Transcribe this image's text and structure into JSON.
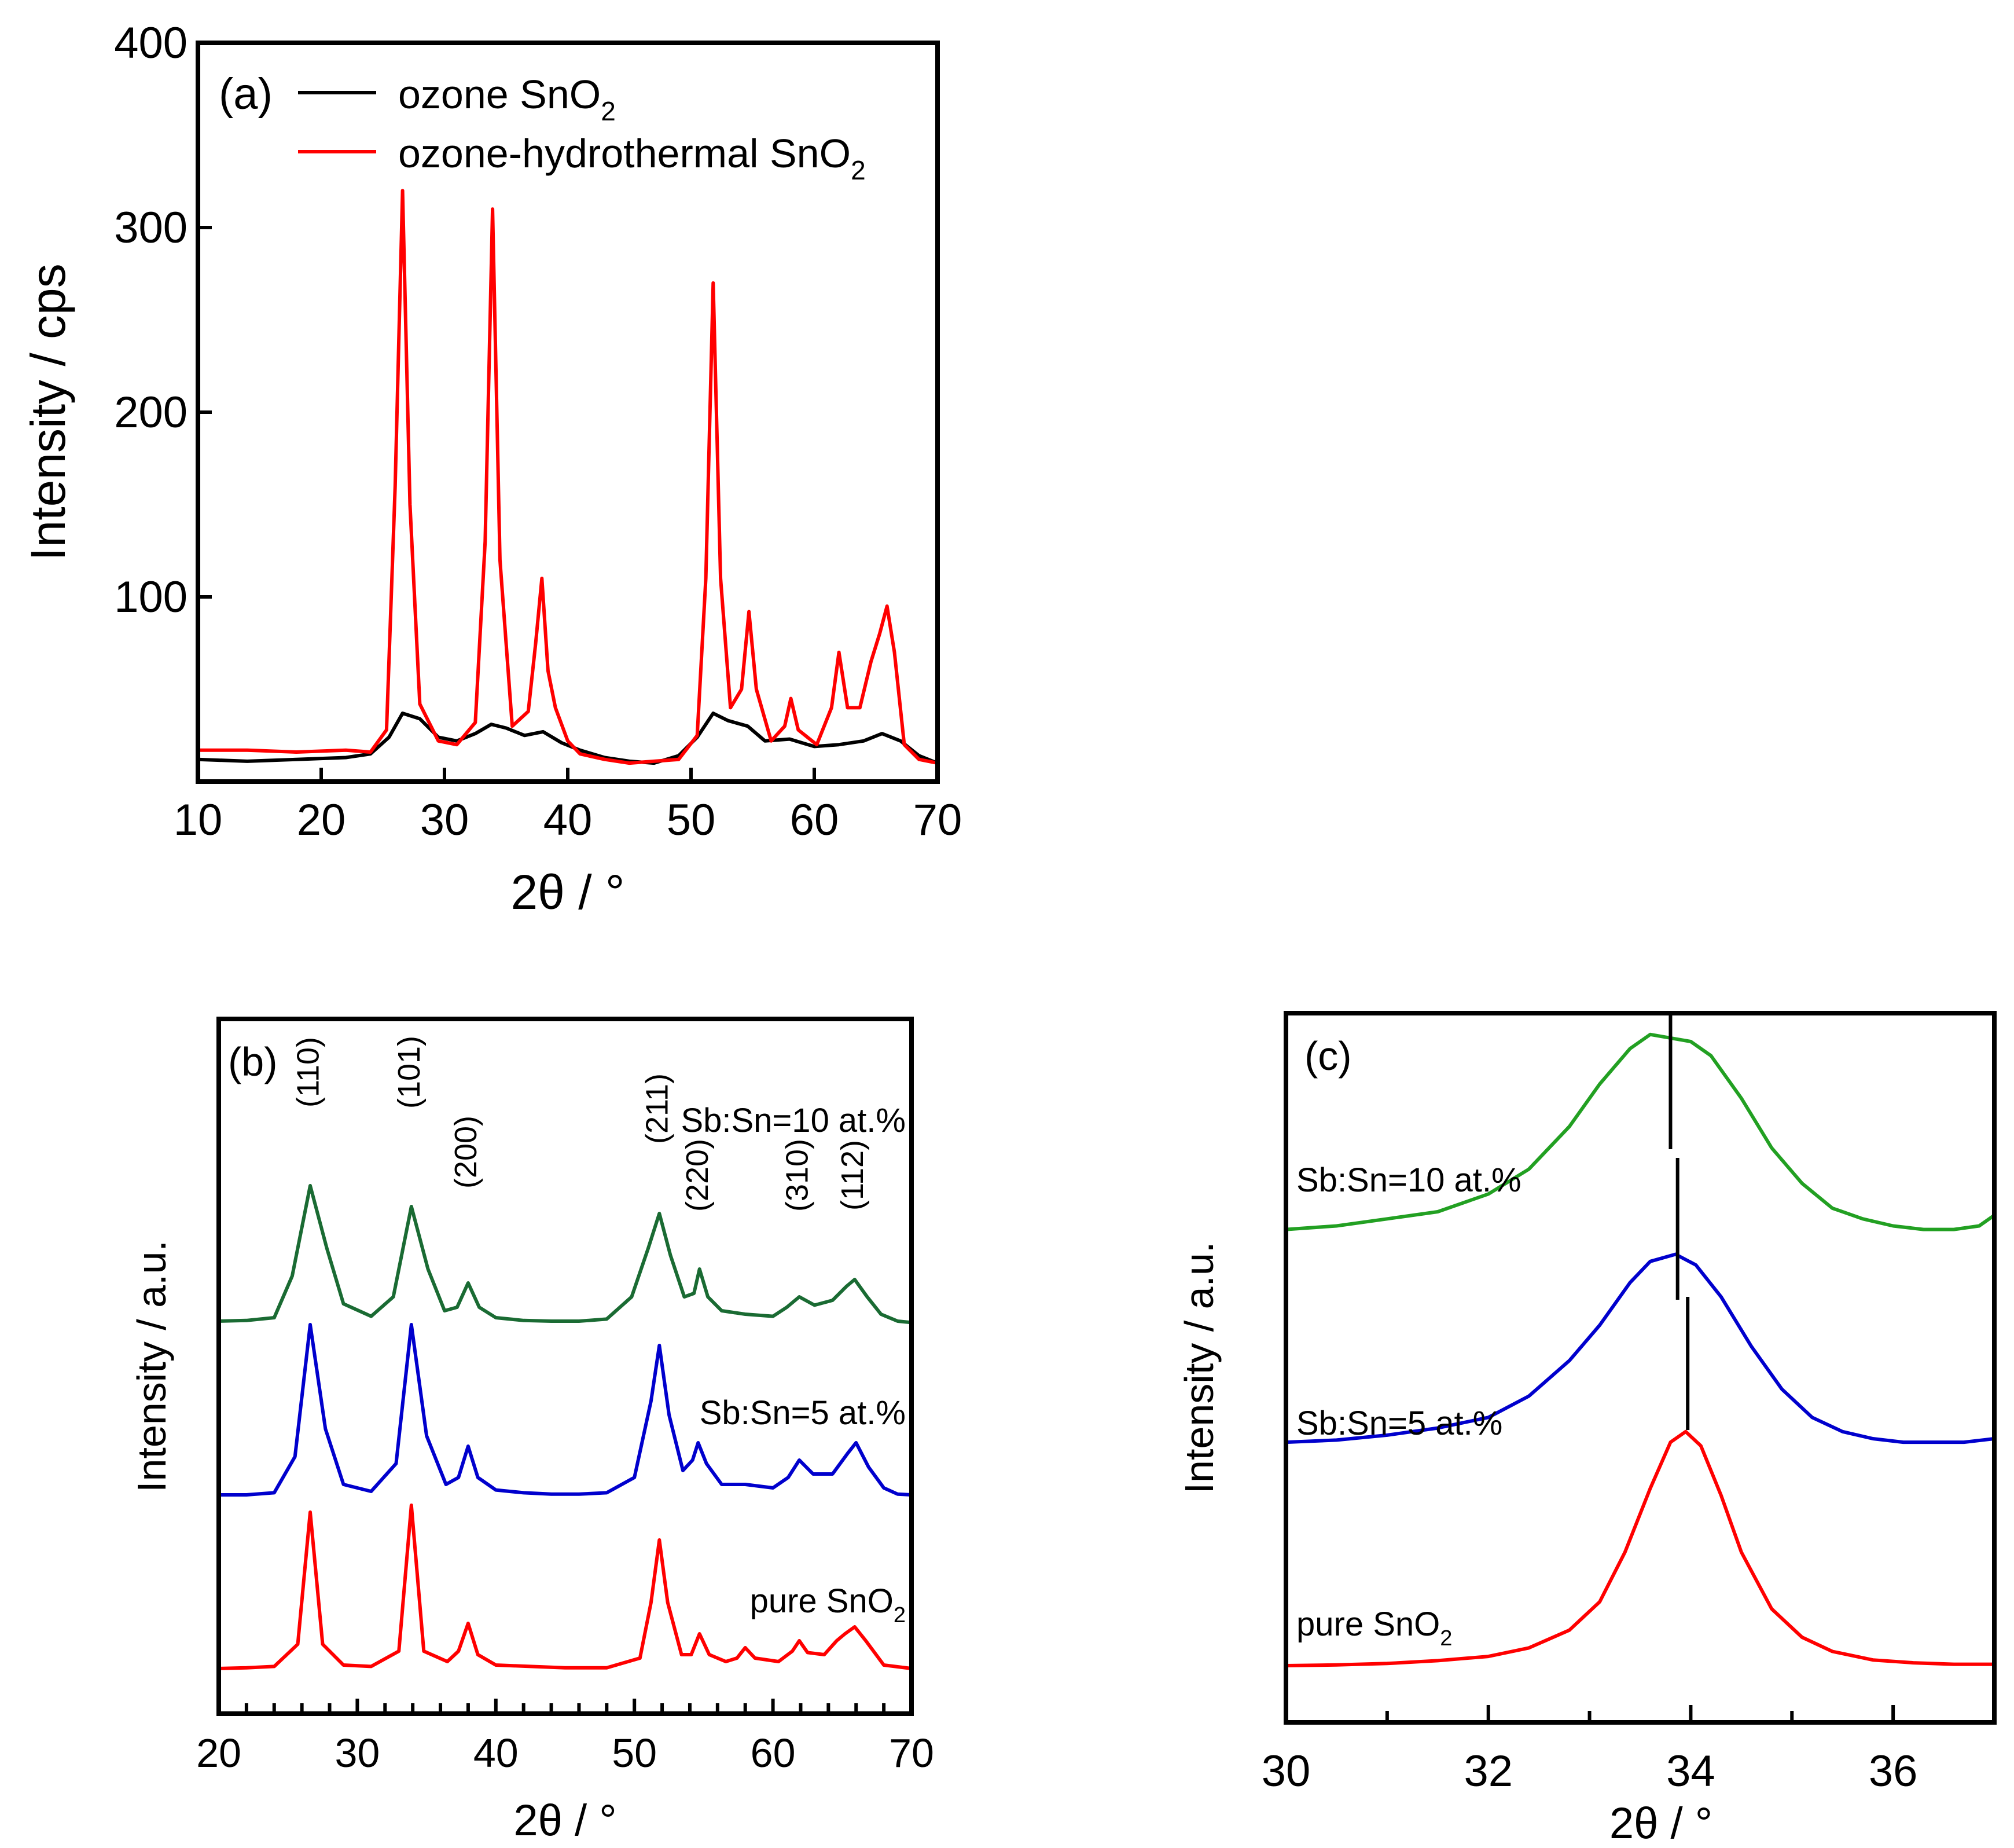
{
  "chart_data": [
    {
      "id": "a",
      "type": "line",
      "panel_label": "(a)",
      "xlabel": "2θ  / °",
      "ylabel": "Intensity / cps",
      "xlim": [
        10,
        70
      ],
      "ylim": [
        0,
        400
      ],
      "xticks": [
        10,
        20,
        30,
        40,
        50,
        60,
        70
      ],
      "yticks": [
        100,
        200,
        300,
        400
      ],
      "legend_position": "top-left",
      "series": [
        {
          "name": "ozone SnO2",
          "legend_label": "ozone SnO",
          "legend_sub": "2",
          "color": "#000000",
          "x": [
            10,
            14,
            18,
            22,
            24,
            25.5,
            26.6,
            28,
            29.5,
            31,
            32.5,
            33.8,
            35,
            36.5,
            38,
            39.5,
            41,
            43,
            45,
            47,
            49,
            50.5,
            51.8,
            53,
            54.6,
            56,
            58,
            60,
            62,
            64,
            65.5,
            67,
            68.5,
            70
          ],
          "values": [
            12,
            11,
            12,
            13,
            15,
            24,
            37,
            34,
            24,
            22,
            26,
            31,
            29,
            25,
            27,
            21,
            17,
            13,
            11,
            10,
            14,
            24,
            37,
            33,
            30,
            22,
            23,
            19,
            20,
            22,
            26,
            22,
            14,
            10
          ]
        },
        {
          "name": "ozone-hydrothermal SnO2",
          "legend_label": "ozone-hydrothermal SnO",
          "legend_sub": "2",
          "color": "#ff0000",
          "x": [
            10,
            14,
            18,
            22,
            24,
            25.3,
            26.0,
            26.6,
            27.2,
            28,
            29.5,
            31,
            32.5,
            33.3,
            33.9,
            34.5,
            35.5,
            36.8,
            37.4,
            37.9,
            38.4,
            39,
            40,
            41,
            43,
            45,
            47,
            49,
            50.5,
            51.2,
            51.8,
            52.4,
            53.2,
            54.1,
            54.7,
            55.3,
            56.5,
            57.6,
            58.1,
            58.7,
            60.2,
            61.4,
            62,
            62.7,
            63.7,
            64.6,
            65.3,
            65.9,
            66.5,
            67.3,
            68.5,
            70
          ],
          "values": [
            17,
            17,
            16,
            17,
            16,
            28,
            160,
            320,
            150,
            42,
            22,
            20,
            32,
            130,
            310,
            120,
            30,
            38,
            75,
            110,
            60,
            40,
            22,
            15,
            12,
            10,
            11,
            12,
            25,
            110,
            270,
            110,
            40,
            50,
            92,
            50,
            22,
            30,
            45,
            28,
            20,
            40,
            70,
            40,
            40,
            65,
            80,
            95,
            70,
            20,
            12,
            10
          ]
        }
      ]
    },
    {
      "id": "b",
      "type": "line",
      "panel_label": "(b)",
      "xlabel": "2θ  / °",
      "ylabel": "Intensity / a.u.",
      "xlim": [
        20,
        70
      ],
      "ylim": [
        0,
        1
      ],
      "xticks": [
        20,
        30,
        40,
        50,
        60,
        70
      ],
      "peak_labels": [
        {
          "label": "(110)",
          "x": 26.6
        },
        {
          "label": "(101)",
          "x": 33.9
        },
        {
          "label": "(200)",
          "x": 38.0
        },
        {
          "label": "(211)",
          "x": 51.8
        },
        {
          "label": "(220)",
          "x": 54.7
        },
        {
          "label": "(310)",
          "x": 61.9
        },
        {
          "label": "(112)",
          "x": 65.9
        }
      ],
      "series": [
        {
          "name": "Sb:Sn=10 at.%",
          "label": "Sb:Sn=10 at.%",
          "label_sub": "",
          "color": "#1a6b33",
          "x": [
            20,
            22,
            24,
            25.3,
            26.6,
            27.8,
            29,
            31,
            32.6,
            33.9,
            35.1,
            36.3,
            37.2,
            38,
            38.8,
            40,
            42,
            44,
            46,
            48,
            49.8,
            51,
            51.8,
            52.6,
            53.6,
            54.3,
            54.7,
            55.3,
            56.3,
            58,
            60,
            61,
            61.9,
            63,
            64.3,
            65.3,
            65.9,
            66.8,
            67.8,
            69,
            70
          ],
          "values": [
            0.565,
            0.566,
            0.57,
            0.63,
            0.76,
            0.67,
            0.59,
            0.572,
            0.6,
            0.73,
            0.64,
            0.58,
            0.585,
            0.62,
            0.585,
            0.57,
            0.566,
            0.565,
            0.565,
            0.568,
            0.6,
            0.67,
            0.72,
            0.66,
            0.6,
            0.605,
            0.64,
            0.6,
            0.58,
            0.575,
            0.572,
            0.585,
            0.6,
            0.588,
            0.595,
            0.615,
            0.625,
            0.6,
            0.575,
            0.565,
            0.563
          ]
        },
        {
          "name": "Sb:Sn=5 at.%",
          "label": "Sb:Sn=5 at.%",
          "label_sub": "",
          "color": "#0000cd",
          "x": [
            20,
            22,
            24,
            25.5,
            26.6,
            27.7,
            29,
            31,
            32.8,
            33.9,
            35,
            36.4,
            37.3,
            38,
            38.7,
            40,
            42,
            44,
            46,
            48,
            50,
            51.2,
            51.8,
            52.5,
            53.5,
            54.2,
            54.6,
            55.2,
            56.3,
            58,
            60,
            61.1,
            61.9,
            62.9,
            64.3,
            65.4,
            66,
            66.9,
            68,
            69,
            70
          ],
          "values": [
            0.315,
            0.315,
            0.318,
            0.37,
            0.56,
            0.41,
            0.33,
            0.32,
            0.36,
            0.56,
            0.4,
            0.33,
            0.34,
            0.385,
            0.34,
            0.322,
            0.318,
            0.316,
            0.316,
            0.318,
            0.34,
            0.45,
            0.53,
            0.43,
            0.35,
            0.365,
            0.39,
            0.36,
            0.33,
            0.33,
            0.325,
            0.34,
            0.365,
            0.345,
            0.345,
            0.375,
            0.39,
            0.355,
            0.325,
            0.316,
            0.315
          ]
        },
        {
          "name": "pure SnO2",
          "label": "pure SnO",
          "label_sub": "2",
          "color": "#ff0000",
          "x": [
            20,
            22,
            24,
            25.7,
            26.6,
            27.5,
            29,
            31,
            33,
            33.9,
            34.8,
            36.5,
            37.3,
            38,
            38.7,
            40,
            42.5,
            45,
            48,
            50.4,
            51.2,
            51.8,
            52.4,
            53.4,
            54.1,
            54.7,
            55.4,
            56.6,
            57.4,
            58,
            58.7,
            60.4,
            61.4,
            61.9,
            62.5,
            63.7,
            64.6,
            65.2,
            65.9,
            66.7,
            68,
            70
          ],
          "values": [
            0.065,
            0.066,
            0.068,
            0.1,
            0.29,
            0.1,
            0.07,
            0.068,
            0.09,
            0.3,
            0.09,
            0.075,
            0.09,
            0.13,
            0.085,
            0.07,
            0.068,
            0.066,
            0.066,
            0.08,
            0.16,
            0.25,
            0.16,
            0.085,
            0.085,
            0.115,
            0.085,
            0.075,
            0.08,
            0.095,
            0.08,
            0.075,
            0.09,
            0.105,
            0.088,
            0.085,
            0.105,
            0.115,
            0.125,
            0.105,
            0.07,
            0.065
          ]
        }
      ]
    },
    {
      "id": "c",
      "type": "line",
      "panel_label": "(c)",
      "xlabel": "2θ  / °",
      "ylabel": "Intensity / a.u.",
      "xlim": [
        30,
        37
      ],
      "ylim": [
        0,
        1
      ],
      "xticks": [
        30,
        32,
        34,
        36
      ],
      "minor_xticks": [
        31,
        33,
        35
      ],
      "peak_markers": [
        {
          "series": "Sb:Sn=10 at.%",
          "x": 33.8
        },
        {
          "series": "Sb:Sn=5 at.%",
          "x": 33.87
        },
        {
          "series": "pure SnO2",
          "x": 33.97
        }
      ],
      "series": [
        {
          "name": "Sb:Sn=10 at.%",
          "label": "Sb:Sn=10 at.%",
          "label_sub": "",
          "color": "#22a022",
          "x": [
            30,
            30.5,
            31,
            31.5,
            32,
            32.4,
            32.8,
            33.1,
            33.4,
            33.6,
            33.8,
            34.0,
            34.2,
            34.5,
            34.8,
            35.1,
            35.4,
            35.7,
            36,
            36.3,
            36.6,
            36.85,
            37
          ],
          "values": [
            0.695,
            0.7,
            0.71,
            0.72,
            0.745,
            0.78,
            0.84,
            0.9,
            0.95,
            0.97,
            0.965,
            0.96,
            0.94,
            0.88,
            0.81,
            0.76,
            0.725,
            0.71,
            0.7,
            0.695,
            0.695,
            0.7,
            0.715
          ]
        },
        {
          "name": "Sb:Sn=5 at.%",
          "label": "Sb:Sn=5 at.%",
          "label_sub": "",
          "color": "#0000cd",
          "x": [
            30,
            30.5,
            31,
            31.5,
            32,
            32.4,
            32.8,
            33.1,
            33.4,
            33.6,
            33.85,
            34.05,
            34.3,
            34.6,
            34.9,
            35.2,
            35.5,
            35.8,
            36.1,
            36.4,
            36.7,
            37
          ],
          "values": [
            0.395,
            0.398,
            0.405,
            0.415,
            0.43,
            0.46,
            0.51,
            0.56,
            0.62,
            0.65,
            0.66,
            0.645,
            0.6,
            0.53,
            0.47,
            0.43,
            0.41,
            0.4,
            0.395,
            0.395,
            0.395,
            0.4
          ]
        },
        {
          "name": "pure SnO2",
          "label": "pure SnO",
          "label_sub": "2",
          "color": "#ff0000",
          "x": [
            30,
            30.5,
            31,
            31.5,
            32,
            32.4,
            32.8,
            33.1,
            33.35,
            33.6,
            33.8,
            33.95,
            34.1,
            34.3,
            34.5,
            34.8,
            35.1,
            35.4,
            35.8,
            36.2,
            36.6,
            37
          ],
          "values": [
            0.08,
            0.081,
            0.083,
            0.087,
            0.093,
            0.105,
            0.13,
            0.17,
            0.24,
            0.33,
            0.395,
            0.41,
            0.39,
            0.32,
            0.24,
            0.16,
            0.12,
            0.1,
            0.088,
            0.084,
            0.082,
            0.082
          ]
        }
      ]
    }
  ]
}
